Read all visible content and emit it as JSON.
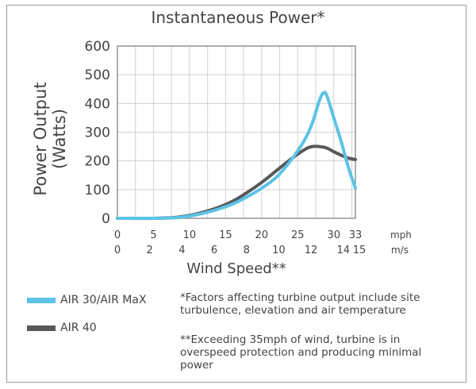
{
  "chart_data": {
    "type": "line",
    "title": "Instantaneous Power*",
    "xlabel": "Wind Speed**",
    "ylabel_line1": "Power Output",
    "ylabel_line2": "(Watts)",
    "xlim": [
      0,
      33
    ],
    "ylim": [
      0,
      600
    ],
    "grid": true,
    "y_ticks": [
      0,
      100,
      200,
      300,
      400,
      500,
      600
    ],
    "x_ticks_mph": [
      {
        "value": 0,
        "label": "0"
      },
      {
        "value": 5,
        "label": "5"
      },
      {
        "value": 10,
        "label": "10"
      },
      {
        "value": 15,
        "label": "15"
      },
      {
        "value": 20,
        "label": "20"
      },
      {
        "value": 25,
        "label": "25"
      },
      {
        "value": 30,
        "label": "30"
      },
      {
        "value": 33,
        "label": "33"
      }
    ],
    "x_ticks_ms": [
      {
        "value": 0,
        "label": "0"
      },
      {
        "value": 4.47,
        "label": "2"
      },
      {
        "value": 8.95,
        "label": "4"
      },
      {
        "value": 13.42,
        "label": "6"
      },
      {
        "value": 17.9,
        "label": "8"
      },
      {
        "value": 22.37,
        "label": "10"
      },
      {
        "value": 26.84,
        "label": "12"
      },
      {
        "value": 31.32,
        "label": "14"
      },
      {
        "value": 33.55,
        "label": "15"
      }
    ],
    "unit_mph": "mph",
    "unit_ms": "m/s",
    "series": [
      {
        "name": "AIR 30/AIR MaX",
        "color": "#5bc3e6",
        "x": [
          0,
          5,
          8,
          10,
          12,
          14,
          16,
          18,
          20,
          22,
          24,
          26,
          27,
          28,
          28.5,
          29,
          30,
          31,
          32,
          33
        ],
        "y": [
          0,
          0,
          2,
          8,
          18,
          32,
          50,
          75,
          105,
          142,
          200,
          275,
          330,
          410,
          435,
          430,
          350,
          270,
          180,
          105
        ]
      },
      {
        "name": "AIR 40",
        "color": "#58585a",
        "x": [
          0,
          5,
          8,
          10,
          12,
          14,
          16,
          18,
          20,
          22,
          24,
          26,
          27,
          28,
          29,
          30,
          31,
          32,
          33
        ],
        "y": [
          0,
          0,
          3,
          10,
          22,
          38,
          60,
          90,
          125,
          165,
          205,
          240,
          250,
          250,
          245,
          232,
          220,
          210,
          205
        ]
      }
    ]
  },
  "notes": {
    "factors": "*Factors affecting turbine output include site turbulence, elevation and air temperature",
    "overspeed": "**Exceeding 35mph of wind, turbine is in overspeed protection and producing minimal power"
  }
}
